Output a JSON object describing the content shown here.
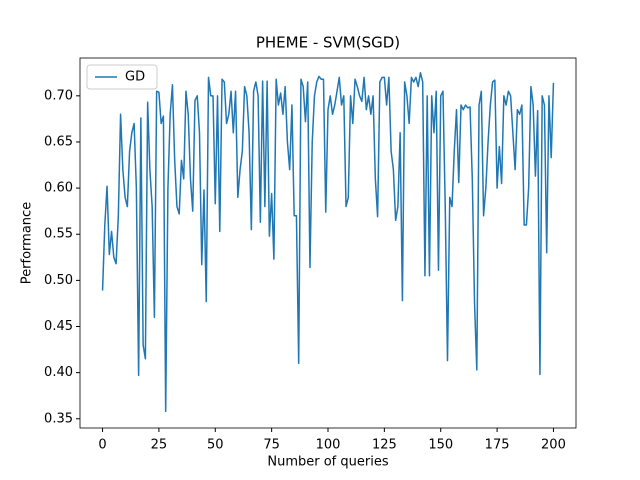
{
  "chart_data": {
    "type": "line",
    "title": "PHEME - SVM(SGD)",
    "xlabel": "Number of queries",
    "ylabel": "Performance",
    "x": [
      0,
      1,
      2,
      3,
      4,
      5,
      6,
      7,
      8,
      9,
      10,
      11,
      12,
      13,
      14,
      15,
      16,
      17,
      18,
      19,
      20,
      21,
      22,
      23,
      24,
      25,
      26,
      27,
      28,
      29,
      30,
      31,
      32,
      33,
      34,
      35,
      36,
      37,
      38,
      39,
      40,
      41,
      42,
      43,
      44,
      45,
      46,
      47,
      48,
      49,
      50,
      51,
      52,
      53,
      54,
      55,
      56,
      57,
      58,
      59,
      60,
      61,
      62,
      63,
      64,
      65,
      66,
      67,
      68,
      69,
      70,
      71,
      72,
      73,
      74,
      75,
      76,
      77,
      78,
      79,
      80,
      81,
      82,
      83,
      84,
      85,
      86,
      87,
      88,
      89,
      90,
      91,
      92,
      93,
      94,
      95,
      96,
      97,
      98,
      99,
      100,
      101,
      102,
      103,
      104,
      105,
      106,
      107,
      108,
      109,
      110,
      111,
      112,
      113,
      114,
      115,
      116,
      117,
      118,
      119,
      120,
      121,
      122,
      123,
      124,
      125,
      126,
      127,
      128,
      129,
      130,
      131,
      132,
      133,
      134,
      135,
      136,
      137,
      138,
      139,
      140,
      141,
      142,
      143,
      144,
      145,
      146,
      147,
      148,
      149,
      150,
      151,
      152,
      153,
      154,
      155,
      156,
      157,
      158,
      159,
      160,
      161,
      162,
      163,
      164,
      165,
      166,
      167,
      168,
      169,
      170,
      171,
      172,
      173,
      174,
      175,
      176,
      177,
      178,
      179,
      180,
      181,
      182,
      183,
      184,
      185,
      186,
      187,
      188,
      189,
      190,
      191,
      192,
      193,
      194,
      195,
      196,
      197,
      198,
      199,
      200
    ],
    "series": [
      {
        "name": "GD",
        "color": "#1f77b4",
        "values": [
          0.489,
          0.56,
          0.602,
          0.528,
          0.553,
          0.525,
          0.518,
          0.57,
          0.68,
          0.62,
          0.59,
          0.58,
          0.64,
          0.66,
          0.67,
          0.6,
          0.397,
          0.676,
          0.43,
          0.415,
          0.693,
          0.62,
          0.58,
          0.46,
          0.705,
          0.704,
          0.67,
          0.678,
          0.358,
          0.6,
          0.68,
          0.712,
          0.63,
          0.58,
          0.572,
          0.63,
          0.61,
          0.705,
          0.68,
          0.61,
          0.575,
          0.695,
          0.7,
          0.66,
          0.517,
          0.598,
          0.477,
          0.72,
          0.7,
          0.7,
          0.583,
          0.7,
          0.553,
          0.718,
          0.715,
          0.67,
          0.68,
          0.705,
          0.66,
          0.705,
          0.59,
          0.62,
          0.64,
          0.71,
          0.7,
          0.66,
          0.555,
          0.705,
          0.715,
          0.7,
          0.563,
          0.716,
          0.58,
          0.716,
          0.548,
          0.594,
          0.523,
          0.718,
          0.69,
          0.703,
          0.68,
          0.71,
          0.65,
          0.62,
          0.69,
          0.57,
          0.57,
          0.41,
          0.718,
          0.71,
          0.672,
          0.715,
          0.514,
          0.65,
          0.7,
          0.715,
          0.721,
          0.718,
          0.718,
          0.574,
          0.685,
          0.7,
          0.68,
          0.69,
          0.705,
          0.72,
          0.69,
          0.7,
          0.58,
          0.59,
          0.7,
          0.67,
          0.718,
          0.71,
          0.7,
          0.694,
          0.72,
          0.685,
          0.7,
          0.68,
          0.7,
          0.61,
          0.569,
          0.715,
          0.72,
          0.72,
          0.69,
          0.72,
          0.64,
          0.62,
          0.565,
          0.58,
          0.66,
          0.478,
          0.715,
          0.7,
          0.67,
          0.72,
          0.715,
          0.72,
          0.71,
          0.725,
          0.715,
          0.505,
          0.7,
          0.505,
          0.7,
          0.66,
          0.705,
          0.511,
          0.7,
          0.705,
          0.58,
          0.413,
          0.59,
          0.58,
          0.64,
          0.685,
          0.606,
          0.69,
          0.685,
          0.69,
          0.687,
          0.688,
          0.61,
          0.475,
          0.403,
          0.69,
          0.705,
          0.57,
          0.6,
          0.65,
          0.69,
          0.715,
          0.717,
          0.6,
          0.645,
          0.605,
          0.7,
          0.69,
          0.705,
          0.7,
          0.66,
          0.62,
          0.685,
          0.68,
          0.69,
          0.56,
          0.56,
          0.6,
          0.71,
          0.69,
          0.613,
          0.684,
          0.398,
          0.7,
          0.69,
          0.53,
          0.7,
          0.633,
          0.714
        ]
      }
    ],
    "xlim": [
      -10,
      210
    ],
    "ylim": [
      0.34,
      0.741
    ],
    "xticks": [
      0,
      25,
      50,
      75,
      100,
      125,
      150,
      175,
      200
    ],
    "yticks": [
      0.35,
      {
        "value": 0.4,
        "label": "0.40"
      },
      0.45,
      {
        "value": 0.5,
        "label": "0.50"
      },
      0.55,
      {
        "value": 0.6,
        "label": "0.60"
      },
      0.65,
      {
        "value": 0.7,
        "label": "0.70"
      }
    ],
    "legend": "upper left",
    "grid": false
  }
}
